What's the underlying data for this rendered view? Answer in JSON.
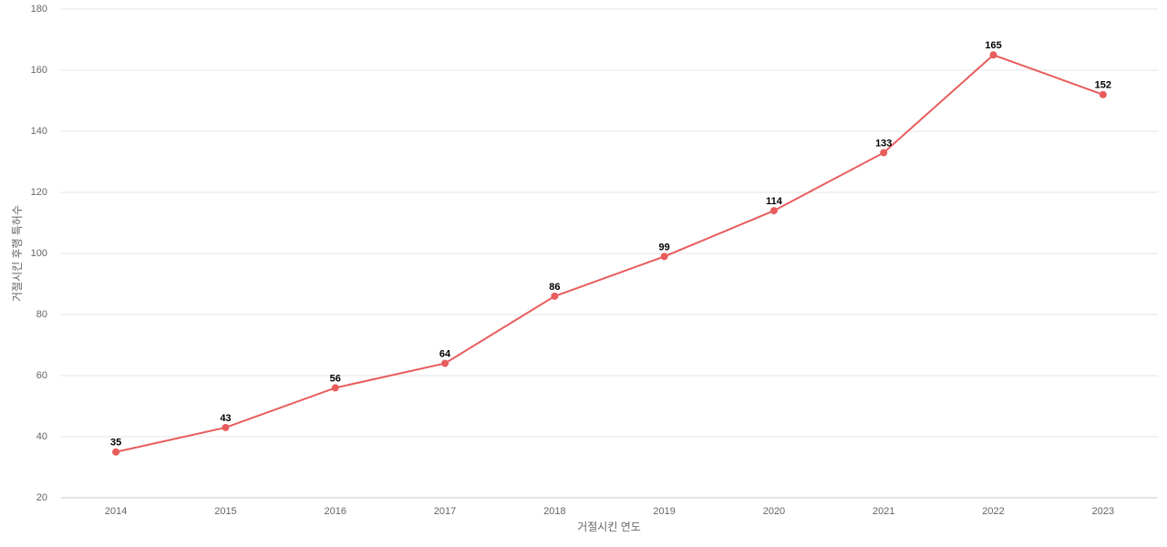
{
  "chart_data": {
    "type": "line",
    "x_label": "거절시킨 연도",
    "y_label": "거절시킨 후행 특허수",
    "categories": [
      "2014",
      "2015",
      "2016",
      "2017",
      "2018",
      "2019",
      "2020",
      "2021",
      "2022",
      "2023"
    ],
    "series": [
      {
        "color": "#e85c5c",
        "values": [
          35,
          43,
          56,
          64,
          86,
          99,
          114,
          133,
          165,
          152
        ]
      }
    ],
    "ylim": [
      20,
      180
    ],
    "yticks": [
      20,
      40,
      60,
      80,
      100,
      120,
      140,
      160,
      180
    ],
    "grid": true
  }
}
